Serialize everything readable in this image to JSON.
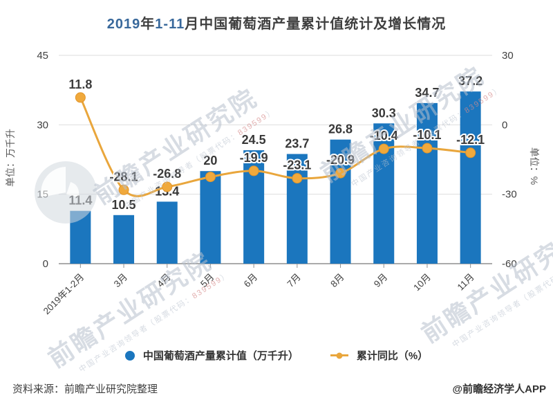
{
  "title": {
    "full": "2019年1-11月中国葡萄酒产量累计值统计及增长情况",
    "parts": [
      {
        "text": "2019",
        "color": "#38689b"
      },
      {
        "text": "年",
        "color": "#3f3f3f"
      },
      {
        "text": "1-11",
        "color": "#38689b"
      },
      {
        "text": "月中国葡萄酒产量累计值统计及增长情况",
        "color": "#3f3f3f"
      }
    ]
  },
  "chart_data": {
    "type": "combo-bar-line",
    "categories": [
      "2019年1-2月",
      "3月",
      "4月",
      "5月",
      "6月",
      "7月",
      "8月",
      "9月",
      "10月",
      "11月"
    ],
    "series": [
      {
        "name": "中国葡萄酒产量累计值（万千升）",
        "type": "bar",
        "axis": "left",
        "color": "#1b76be",
        "values": [
          11.4,
          10.5,
          13.4,
          20,
          24.5,
          23.7,
          26.8,
          30.3,
          34.7,
          37.2
        ],
        "labels": [
          "11.4",
          "10.5",
          "13.4",
          "20",
          "24.5",
          "23.7",
          "26.8",
          "30.3",
          "34.7",
          "37.2"
        ]
      },
      {
        "name": "累计同比（%）",
        "type": "line",
        "axis": "right",
        "color": "#e9a63c",
        "marker_fill": "#f0a93c",
        "marker_stroke": "#e2952a",
        "values": [
          11.8,
          -28.1,
          -26.8,
          -22.5,
          -19.9,
          -23.1,
          -20.9,
          -10.4,
          -10.1,
          -12.1
        ],
        "labels": [
          "11.8",
          "-28.1",
          "-26.8",
          "",
          "-19.9",
          "-23.1",
          "-20.9",
          "-10.4",
          "-10.1",
          "-12.1"
        ]
      }
    ],
    "left_axis": {
      "title": "单位：万千升",
      "min": 0,
      "max": 45,
      "ticks": [
        0,
        15,
        30,
        45
      ]
    },
    "right_axis": {
      "title": "单位：%",
      "min": -60,
      "max": 30,
      "ticks": [
        30,
        0,
        -30,
        -60
      ]
    },
    "grid": true,
    "legend_position": "bottom"
  },
  "legend": {
    "items": [
      {
        "label": "中国葡萄酒产量累计值（万千升）",
        "marker": "circle",
        "color": "#1b76be"
      },
      {
        "label": "累计同比（%）",
        "marker": "line-dot",
        "color": "#e9a63c"
      }
    ]
  },
  "footer": {
    "source": "资料来源：前瞻产业研究院整理",
    "credit": "@前瞻经济学人APP"
  },
  "watermark": {
    "big": "前瞻产业研究院",
    "small_prefix": "中国产业咨询领导者（股票代码：",
    "small_digits": "839599",
    "small_suffix": "）"
  }
}
